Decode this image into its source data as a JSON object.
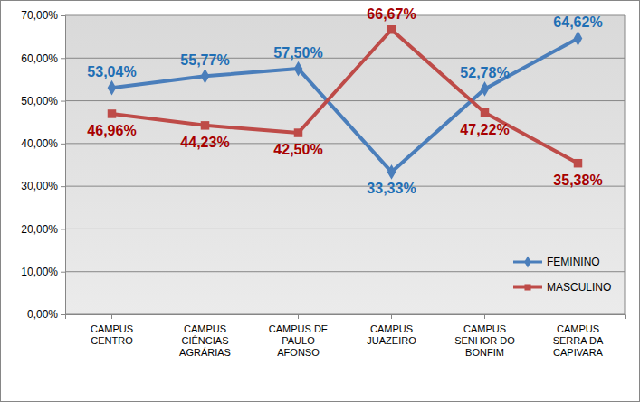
{
  "chart_data": {
    "type": "line",
    "categories": [
      "CAMPUS CENTRO",
      "CAMPUS CIÊNCIAS AGRÁRIAS",
      "CAMPUS DE PAULO AFONSO",
      "CAMPUS JUAZEIRO",
      "CAMPUS SENHOR DO BONFIM",
      "CAMPUS SERRA DA CAPIVARA"
    ],
    "series": [
      {
        "name": "FEMININO",
        "color": "#4a7ebb",
        "marker": "diamond",
        "values": [
          53.04,
          55.77,
          57.5,
          33.33,
          52.78,
          64.62
        ],
        "value_labels": [
          "53,04%",
          "55,77%",
          "57,50%",
          "33,33%",
          "52,78%",
          "64,62%"
        ]
      },
      {
        "name": "MASCULINO",
        "color": "#be4b48",
        "marker": "square",
        "values": [
          46.96,
          44.23,
          42.5,
          66.67,
          47.22,
          35.38
        ],
        "value_labels": [
          "46,96%",
          "44,23%",
          "42,50%",
          "66,67%",
          "47,22%",
          "35,38%"
        ]
      }
    ],
    "ylim": [
      0,
      70
    ],
    "yticks": [
      {
        "value": 0,
        "label": "0,00%"
      },
      {
        "value": 10,
        "label": "10,00%"
      },
      {
        "value": 20,
        "label": "20,00%"
      },
      {
        "value": 30,
        "label": "30,00%"
      },
      {
        "value": 40,
        "label": "40,00%"
      },
      {
        "value": 50,
        "label": "50,00%"
      },
      {
        "value": 60,
        "label": "60,00%"
      },
      {
        "value": 70,
        "label": "70,00%"
      }
    ],
    "grid": true,
    "legend": "lower right",
    "data_labels": true
  }
}
